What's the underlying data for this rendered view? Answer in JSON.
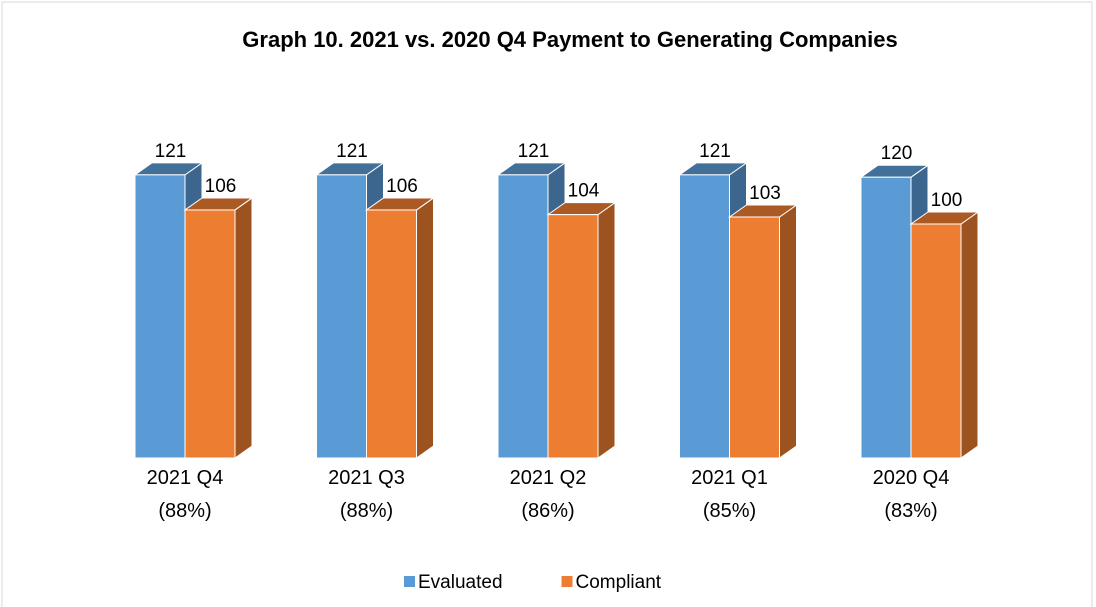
{
  "chart_data": {
    "type": "bar3d",
    "title": "Graph 10. 2021 vs. 2020 Q4 Payment to Generating Companies",
    "categories": [
      "2021 Q4 (88%)",
      "2021 Q3 (88%)",
      "2021 Q2 (86%)",
      "2021 Q1 (85%)",
      "2020 Q4 (83%)"
    ],
    "series": [
      {
        "name": "Evaluated",
        "color": "#5b9bd5",
        "values": [
          121,
          121,
          121,
          121,
          120
        ]
      },
      {
        "name": "Compliant",
        "color": "#ed7d31",
        "values": [
          106,
          106,
          104,
          103,
          100
        ]
      }
    ],
    "legend": "bottom"
  }
}
